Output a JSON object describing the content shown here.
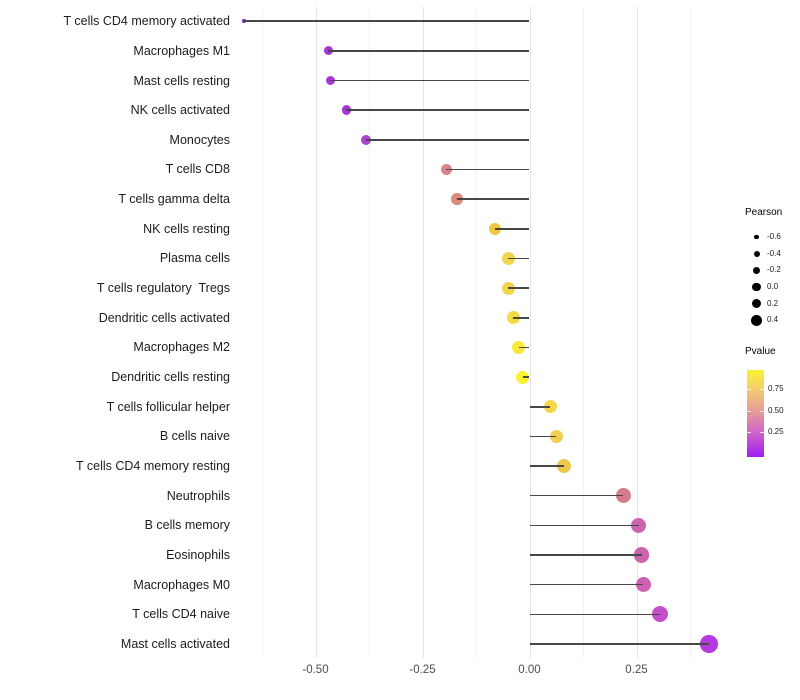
{
  "chart_data": {
    "type": "scatter",
    "subtype": "lollipop-horizontal",
    "title": "",
    "xlabel": "",
    "ylabel": "",
    "xlim": [
      -0.72,
      0.475
    ],
    "stem_from": 0,
    "grid": {
      "orientation": "vertical",
      "major_step": 0.25,
      "minor_step": 0.125,
      "min": -0.625,
      "max": 0.375
    },
    "x_ticks": [
      {
        "label": "-0.50",
        "value": -0.5
      },
      {
        "label": "-0.25",
        "value": -0.25
      },
      {
        "label": "0.00",
        "value": 0.0
      },
      {
        "label": "0.25",
        "value": 0.25
      }
    ],
    "points": [
      {
        "label": "T cells CD4 memory activated",
        "pearson": -0.667,
        "color": "#8926cc",
        "size": 3.6
      },
      {
        "label": "Macrophages M1",
        "pearson": -0.47,
        "color": "#a735d9",
        "size": 9
      },
      {
        "label": "Mast cells resting",
        "pearson": -0.465,
        "color": "#a735d9",
        "size": 9
      },
      {
        "label": "NK cells activated",
        "pearson": -0.428,
        "color": "#a837d7",
        "size": 9.5
      },
      {
        "label": "Monocytes",
        "pearson": -0.383,
        "color": "#ae41d2",
        "size": 10
      },
      {
        "label": "T cells CD8",
        "pearson": -0.194,
        "color": "#d9838b",
        "size": 11
      },
      {
        "label": "T cells gamma delta",
        "pearson": -0.169,
        "color": "#dd8b7d",
        "size": 11.5
      },
      {
        "label": "NK cells resting",
        "pearson": -0.081,
        "color": "#eec73f",
        "size": 12.5
      },
      {
        "label": "Plasma cells",
        "pearson": -0.05,
        "color": "#f2d44e",
        "size": 13
      },
      {
        "label": "T cells regulatory  Tregs",
        "pearson": -0.05,
        "color": "#f2d44e",
        "size": 13
      },
      {
        "label": "Dendritic cells activated",
        "pearson": -0.038,
        "color": "#f4da44",
        "size": 13
      },
      {
        "label": "Macrophages M2",
        "pearson": -0.025,
        "color": "#f8e838",
        "size": 13
      },
      {
        "label": "Dendritic cells resting",
        "pearson": -0.016,
        "color": "#faf232",
        "size": 13
      },
      {
        "label": "T cells follicular helper",
        "pearson": 0.049,
        "color": "#f4d74a",
        "size": 13.5
      },
      {
        "label": "B cells naive",
        "pearson": 0.063,
        "color": "#f0cf52",
        "size": 13.5
      },
      {
        "label": "T cells CD4 memory resting",
        "pearson": 0.08,
        "color": "#edc84e",
        "size": 14
      },
      {
        "label": "Neutrophils",
        "pearson": 0.219,
        "color": "#d67a90",
        "size": 15
      },
      {
        "label": "B cells memory",
        "pearson": 0.255,
        "color": "#cd62ae",
        "size": 15.5
      },
      {
        "label": "Eosinophils",
        "pearson": 0.262,
        "color": "#cd62ae",
        "size": 15.5
      },
      {
        "label": "Macrophages M0",
        "pearson": 0.266,
        "color": "#cd60b0",
        "size": 15.5
      },
      {
        "label": "T cells CD4 naive",
        "pearson": 0.305,
        "color": "#c44fc8",
        "size": 16
      },
      {
        "label": "Mast cells activated",
        "pearson": 0.419,
        "color": "#b23ae0",
        "size": 17.5
      }
    ]
  },
  "legend_pearson": {
    "title": "Pearson",
    "items": [
      {
        "label": "-0.6",
        "diameter": 4.3
      },
      {
        "label": "-0.4",
        "diameter": 6.0
      },
      {
        "label": "-0.2",
        "diameter": 7.3
      },
      {
        "label": "0.0",
        "diameter": 8.7
      },
      {
        "label": "0.2",
        "diameter": 9.7
      },
      {
        "label": "0.4",
        "diameter": 10.7
      }
    ]
  },
  "legend_pvalue": {
    "title": "Pvalue",
    "ticks": [
      {
        "label": "0.75",
        "pos": 0.218
      },
      {
        "label": "0.50",
        "pos": 0.466
      },
      {
        "label": "0.25",
        "pos": 0.713
      }
    ],
    "gradient_top_to_bottom": [
      {
        "at": 0.0,
        "color": "#faf235"
      },
      {
        "at": 0.218,
        "color": "#f3cd6c"
      },
      {
        "at": 0.466,
        "color": "#e89c97"
      },
      {
        "at": 0.713,
        "color": "#cf66c6"
      },
      {
        "at": 1.0,
        "color": "#a21ef3"
      }
    ]
  },
  "colors": {
    "stem": "#474747",
    "grid_major": "#e4e4e4",
    "grid_minor": "#f2f2f2",
    "background": "#ffffff"
  }
}
